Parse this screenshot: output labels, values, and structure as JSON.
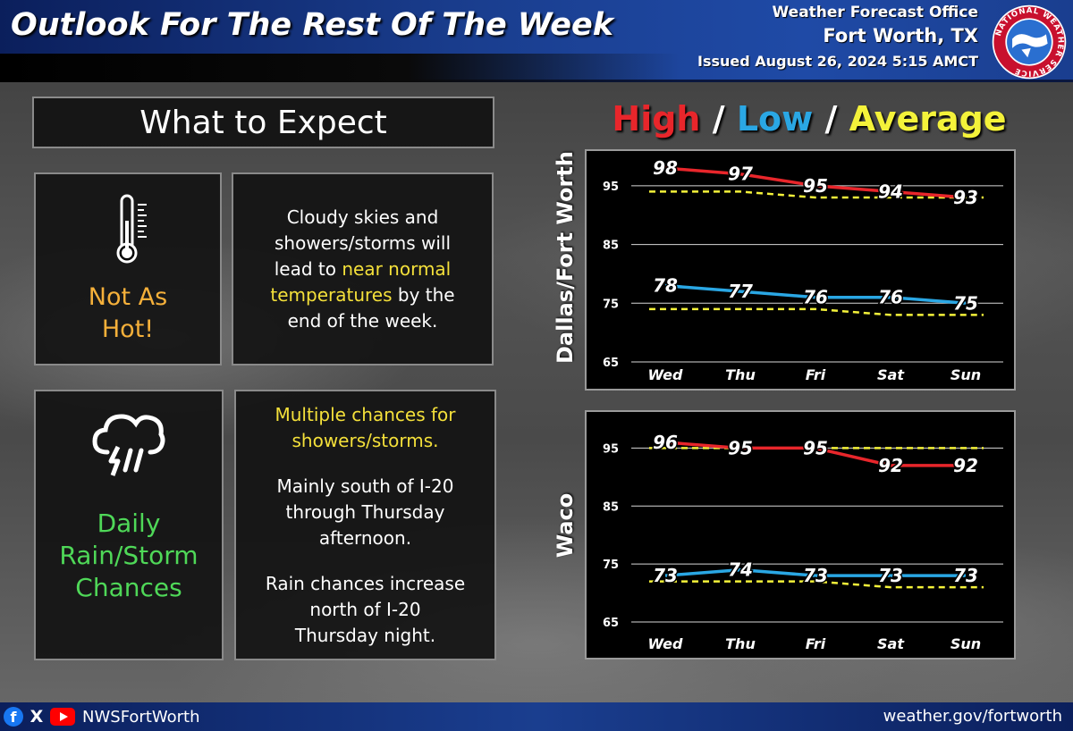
{
  "header": {
    "title": "Outlook For The Rest Of The Week",
    "office_line1": "Weather Forecast Office",
    "office_line2": "Fort Worth, TX",
    "issued": "Issued August 26, 2024 5:15 AMCT",
    "logo_text": "NATIONAL WEATHER SERVICE"
  },
  "expect": {
    "title": "What to Expect",
    "temp_icon": "thermometer-icon",
    "temp_label_1": "Not As",
    "temp_label_2": "Hot!",
    "temp_text_1": "Cloudy skies and",
    "temp_text_2": "showers/storms will",
    "temp_text_3a": "lead to ",
    "temp_text_3b": "near normal",
    "temp_text_4a": "temperatures",
    "temp_text_4b": " by the",
    "temp_text_5": "end of the week.",
    "rain_icon": "storm-cloud-icon",
    "rain_label_1": "Daily",
    "rain_label_2": "Rain/Storm",
    "rain_label_3": "Chances",
    "rain_head_1": "Multiple chances for",
    "rain_head_2": "showers/storms.",
    "rain_p1_1": "Mainly south of I-20",
    "rain_p1_2": "through Thursday",
    "rain_p1_3": "afternoon.",
    "rain_p2_1": "Rain chances increase",
    "rain_p2_2": "north of I-20",
    "rain_p2_3": "Thursday night."
  },
  "legend": {
    "high": "High",
    "sep1": " / ",
    "low": "Low",
    "sep2": " / ",
    "average": "Average"
  },
  "colors": {
    "high": "#e8262b",
    "low": "#2aa7e4",
    "average": "#f4f23a"
  },
  "chart_data": [
    {
      "type": "line",
      "location": "Dallas/Fort Worth",
      "categories": [
        "Wed",
        "Thu",
        "Fri",
        "Sat",
        "Sun"
      ],
      "ylim": [
        65,
        100
      ],
      "yticks": [
        65,
        75,
        85,
        95
      ],
      "grid": true,
      "series": [
        {
          "name": "High",
          "values": [
            98,
            97,
            95,
            94,
            93
          ],
          "labeled": true
        },
        {
          "name": "Low",
          "values": [
            78,
            77,
            76,
            76,
            75
          ],
          "labeled": true
        },
        {
          "name": "Average",
          "values": [
            94,
            94,
            93,
            93,
            93
          ],
          "labeled": false
        },
        {
          "name": "Average",
          "values": [
            74,
            74,
            74,
            73,
            73
          ],
          "labeled": false
        }
      ]
    },
    {
      "type": "line",
      "location": "Waco",
      "categories": [
        "Wed",
        "Thu",
        "Fri",
        "Sat",
        "Sun"
      ],
      "ylim": [
        63,
        100
      ],
      "yticks": [
        65,
        75,
        85,
        95
      ],
      "grid": true,
      "series": [
        {
          "name": "High",
          "values": [
            96,
            95,
            95,
            92,
            92
          ],
          "labeled": true
        },
        {
          "name": "Low",
          "values": [
            73,
            74,
            73,
            73,
            73
          ],
          "labeled": true
        },
        {
          "name": "Average",
          "values": [
            95,
            95,
            95,
            95,
            95
          ],
          "labeled": false
        },
        {
          "name": "Average",
          "values": [
            72,
            72,
            72,
            71,
            71
          ],
          "labeled": false
        }
      ]
    }
  ],
  "footer": {
    "facebook": "f",
    "x": "X",
    "handle": "NWSFortWorth",
    "site": "weather.gov/fortworth"
  }
}
